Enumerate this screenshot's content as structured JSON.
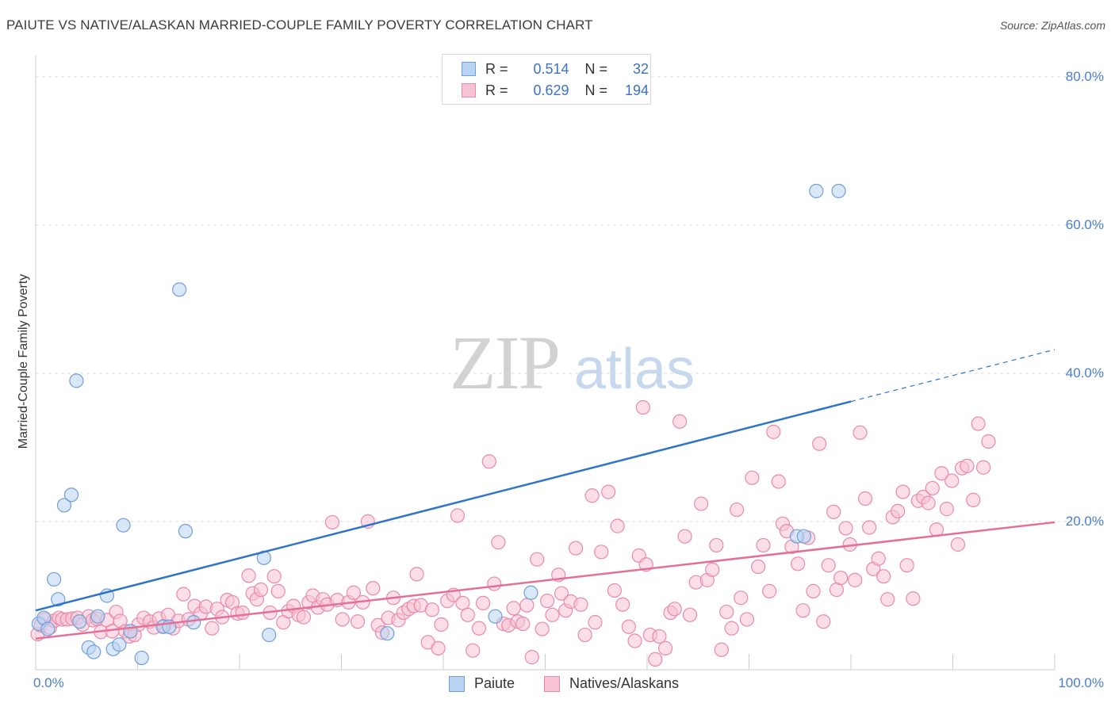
{
  "title": "PAIUTE VS NATIVE/ALASKAN MARRIED-COUPLE FAMILY POVERTY CORRELATION CHART",
  "source": "Source: ZipAtlas.com",
  "watermark": {
    "zip": "ZIP",
    "atlas": "atlas"
  },
  "colors": {
    "paiute_fill": "#b9d3f2",
    "paiute_stroke": "#6f9fd8",
    "paiute_line": "#2f74c9",
    "native_fill": "#f7c2d3",
    "native_stroke": "#e98aa9",
    "native_line": "#e4709a",
    "axis_text": "#4a7ec9",
    "grid": "#dddddd"
  },
  "legend": {
    "rows": [
      {
        "r_label": "R =",
        "r_value": "0.514",
        "n_label": "N =",
        "n_value": "32"
      },
      {
        "r_label": "R =",
        "r_value": "0.629",
        "n_label": "N =",
        "n_value": "194"
      }
    ]
  },
  "chart_data": {
    "type": "scatter",
    "title": "PAIUTE VS NATIVE/ALASKAN MARRIED-COUPLE FAMILY POVERTY CORRELATION CHART",
    "xlabel": "",
    "ylabel": "Married-Couple Family Poverty",
    "xlim": [
      0,
      100
    ],
    "ylim": [
      0,
      85
    ],
    "x_tick_labels": [
      "0.0%",
      "100.0%"
    ],
    "y_ticks": [
      20,
      40,
      60,
      80
    ],
    "y_tick_labels": [
      "20.0%",
      "40.0%",
      "60.0%",
      "80.0%"
    ],
    "grid": true,
    "series": [
      {
        "name": "Paiute",
        "r": 0.514,
        "n": 32,
        "trend": {
          "x0": 0,
          "y0": 8.0,
          "x1": 80,
          "y1": 36.2,
          "dash_to_x": 100,
          "dash_to_y": 43.2
        },
        "points": [
          [
            0.3,
            6.2
          ],
          [
            0.8,
            7.0
          ],
          [
            1.2,
            5.5
          ],
          [
            1.8,
            12.2
          ],
          [
            2.2,
            9.5
          ],
          [
            2.8,
            22.2
          ],
          [
            3.5,
            23.6
          ],
          [
            4.0,
            39.0
          ],
          [
            4.3,
            6.5
          ],
          [
            5.2,
            3.0
          ],
          [
            5.7,
            2.4
          ],
          [
            6.1,
            7.2
          ],
          [
            7.0,
            10.0
          ],
          [
            7.6,
            2.8
          ],
          [
            8.2,
            3.4
          ],
          [
            8.6,
            19.5
          ],
          [
            9.3,
            5.2
          ],
          [
            10.4,
            1.6
          ],
          [
            12.5,
            5.8
          ],
          [
            13.1,
            5.8
          ],
          [
            14.1,
            51.3
          ],
          [
            14.7,
            18.7
          ],
          [
            15.5,
            6.4
          ],
          [
            22.4,
            15.1
          ],
          [
            22.9,
            4.7
          ],
          [
            34.5,
            4.9
          ],
          [
            45.1,
            7.2
          ],
          [
            48.6,
            10.4
          ],
          [
            74.7,
            18.0
          ],
          [
            75.4,
            18.0
          ],
          [
            76.6,
            64.6
          ],
          [
            78.8,
            64.6
          ]
        ]
      },
      {
        "name": "Natives/Alaskans",
        "r": 0.629,
        "n": 194,
        "trend": {
          "x0": 0,
          "y0": 4.2,
          "x1": 100,
          "y1": 19.9
        },
        "points": [
          [
            0.2,
            4.8
          ],
          [
            0.5,
            6.0
          ],
          [
            0.9,
            6.8
          ],
          [
            1.4,
            5.7
          ],
          [
            1.8,
            6.6
          ],
          [
            2.3,
            7.0
          ],
          [
            2.6,
            6.8
          ],
          [
            3.1,
            6.8
          ],
          [
            3.6,
            6.9
          ],
          [
            4.1,
            7.0
          ],
          [
            4.6,
            6.1
          ],
          [
            5.2,
            7.2
          ],
          [
            5.6,
            6.7
          ],
          [
            6.0,
            6.9
          ],
          [
            6.4,
            5.1
          ],
          [
            7.0,
            6.7
          ],
          [
            7.5,
            5.2
          ],
          [
            7.9,
            7.8
          ],
          [
            8.3,
            6.6
          ],
          [
            8.8,
            5.2
          ],
          [
            9.2,
            4.5
          ],
          [
            9.7,
            4.7
          ],
          [
            10.1,
            6.1
          ],
          [
            10.6,
            7.0
          ],
          [
            11.2,
            6.5
          ],
          [
            11.6,
            5.7
          ],
          [
            12.1,
            6.9
          ],
          [
            12.6,
            5.9
          ],
          [
            13.0,
            7.4
          ],
          [
            13.5,
            5.6
          ],
          [
            14.0,
            6.6
          ],
          [
            14.5,
            10.2
          ],
          [
            15.0,
            6.8
          ],
          [
            15.6,
            8.6
          ],
          [
            16.2,
            7.6
          ],
          [
            16.7,
            8.5
          ],
          [
            17.3,
            5.6
          ],
          [
            17.8,
            8.2
          ],
          [
            18.3,
            7.1
          ],
          [
            18.8,
            9.4
          ],
          [
            19.3,
            9.1
          ],
          [
            19.8,
            7.6
          ],
          [
            20.3,
            7.7
          ],
          [
            20.9,
            12.7
          ],
          [
            21.3,
            10.3
          ],
          [
            21.7,
            9.5
          ],
          [
            22.1,
            10.8
          ],
          [
            23.0,
            7.7
          ],
          [
            23.4,
            12.6
          ],
          [
            23.8,
            10.6
          ],
          [
            24.3,
            6.4
          ],
          [
            24.8,
            7.9
          ],
          [
            25.3,
            8.6
          ],
          [
            25.8,
            7.4
          ],
          [
            26.3,
            7.1
          ],
          [
            26.8,
            9.1
          ],
          [
            27.2,
            10.0
          ],
          [
            27.7,
            8.4
          ],
          [
            28.2,
            9.5
          ],
          [
            28.6,
            8.8
          ],
          [
            29.1,
            19.9
          ],
          [
            29.6,
            9.4
          ],
          [
            30.1,
            6.8
          ],
          [
            30.7,
            9.1
          ],
          [
            31.2,
            10.4
          ],
          [
            31.6,
            6.5
          ],
          [
            32.1,
            9.1
          ],
          [
            32.6,
            20.0
          ],
          [
            33.1,
            11.0
          ],
          [
            33.6,
            6.0
          ],
          [
            34.0,
            5.0
          ],
          [
            34.6,
            7.0
          ],
          [
            35.1,
            9.7
          ],
          [
            35.6,
            6.7
          ],
          [
            36.1,
            7.7
          ],
          [
            36.6,
            8.2
          ],
          [
            37.1,
            8.6
          ],
          [
            37.4,
            12.9
          ],
          [
            37.8,
            8.7
          ],
          [
            38.5,
            3.7
          ],
          [
            38.9,
            8.1
          ],
          [
            39.5,
            2.9
          ],
          [
            39.8,
            6.1
          ],
          [
            40.4,
            9.3
          ],
          [
            41.0,
            10.1
          ],
          [
            41.4,
            20.8
          ],
          [
            41.9,
            9.0
          ],
          [
            42.4,
            7.4
          ],
          [
            42.9,
            2.6
          ],
          [
            43.5,
            5.6
          ],
          [
            43.9,
            9.0
          ],
          [
            44.5,
            28.1
          ],
          [
            45.0,
            11.6
          ],
          [
            45.4,
            17.2
          ],
          [
            45.9,
            6.2
          ],
          [
            46.4,
            6.0
          ],
          [
            46.9,
            8.3
          ],
          [
            47.3,
            6.5
          ],
          [
            47.8,
            6.2
          ],
          [
            48.2,
            8.7
          ],
          [
            48.7,
            1.7
          ],
          [
            49.2,
            14.9
          ],
          [
            49.7,
            5.5
          ],
          [
            50.2,
            9.3
          ],
          [
            50.7,
            7.4
          ],
          [
            51.3,
            12.8
          ],
          [
            51.6,
            10.3
          ],
          [
            52.0,
            8.0
          ],
          [
            52.5,
            9.2
          ],
          [
            53.0,
            16.4
          ],
          [
            53.5,
            8.8
          ],
          [
            53.9,
            4.7
          ],
          [
            54.6,
            23.5
          ],
          [
            54.9,
            6.4
          ],
          [
            55.5,
            15.9
          ],
          [
            56.2,
            24.0
          ],
          [
            56.8,
            10.7
          ],
          [
            57.1,
            19.4
          ],
          [
            57.6,
            8.8
          ],
          [
            58.2,
            5.8
          ],
          [
            58.8,
            3.9
          ],
          [
            59.2,
            15.4
          ],
          [
            59.6,
            35.4
          ],
          [
            59.9,
            14.2
          ],
          [
            60.3,
            4.7
          ],
          [
            60.8,
            1.4
          ],
          [
            61.2,
            4.5
          ],
          [
            61.8,
            2.9
          ],
          [
            62.3,
            7.7
          ],
          [
            62.7,
            8.2
          ],
          [
            63.2,
            33.5
          ],
          [
            63.7,
            18.0
          ],
          [
            64.2,
            7.4
          ],
          [
            64.8,
            11.8
          ],
          [
            65.3,
            22.4
          ],
          [
            65.9,
            12.1
          ],
          [
            66.4,
            13.5
          ],
          [
            66.8,
            16.8
          ],
          [
            67.3,
            2.7
          ],
          [
            67.8,
            7.8
          ],
          [
            68.3,
            5.6
          ],
          [
            68.8,
            21.6
          ],
          [
            69.2,
            9.7
          ],
          [
            69.8,
            6.8
          ],
          [
            70.3,
            25.9
          ],
          [
            70.9,
            13.9
          ],
          [
            71.4,
            16.8
          ],
          [
            72.0,
            10.6
          ],
          [
            72.4,
            32.1
          ],
          [
            72.9,
            25.4
          ],
          [
            73.3,
            19.7
          ],
          [
            73.7,
            18.7
          ],
          [
            74.2,
            16.6
          ],
          [
            74.8,
            14.3
          ],
          [
            75.3,
            8.0
          ],
          [
            75.8,
            17.8
          ],
          [
            76.3,
            10.6
          ],
          [
            76.9,
            30.5
          ],
          [
            77.3,
            6.5
          ],
          [
            77.8,
            14.1
          ],
          [
            78.3,
            21.3
          ],
          [
            78.6,
            10.8
          ],
          [
            79.0,
            12.4
          ],
          [
            79.5,
            19.1
          ],
          [
            79.9,
            16.9
          ],
          [
            80.4,
            12.1
          ],
          [
            80.9,
            32.0
          ],
          [
            81.4,
            23.1
          ],
          [
            81.8,
            19.2
          ],
          [
            82.2,
            13.6
          ],
          [
            82.7,
            15.0
          ],
          [
            83.2,
            12.6
          ],
          [
            83.6,
            9.5
          ],
          [
            84.1,
            20.6
          ],
          [
            84.6,
            21.4
          ],
          [
            85.1,
            24.0
          ],
          [
            85.5,
            14.1
          ],
          [
            86.1,
            9.6
          ],
          [
            86.6,
            22.8
          ],
          [
            87.1,
            23.3
          ],
          [
            87.6,
            22.5
          ],
          [
            88.0,
            24.5
          ],
          [
            88.4,
            18.9
          ],
          [
            88.9,
            26.5
          ],
          [
            89.4,
            21.7
          ],
          [
            89.9,
            25.5
          ],
          [
            90.5,
            16.9
          ],
          [
            90.9,
            27.2
          ],
          [
            91.4,
            27.5
          ],
          [
            92.0,
            22.9
          ],
          [
            92.5,
            33.2
          ],
          [
            93.0,
            27.3
          ],
          [
            93.5,
            30.8
          ]
        ]
      }
    ]
  },
  "bottom_legend": {
    "paiute": "Paiute",
    "native": "Natives/Alaskans"
  }
}
